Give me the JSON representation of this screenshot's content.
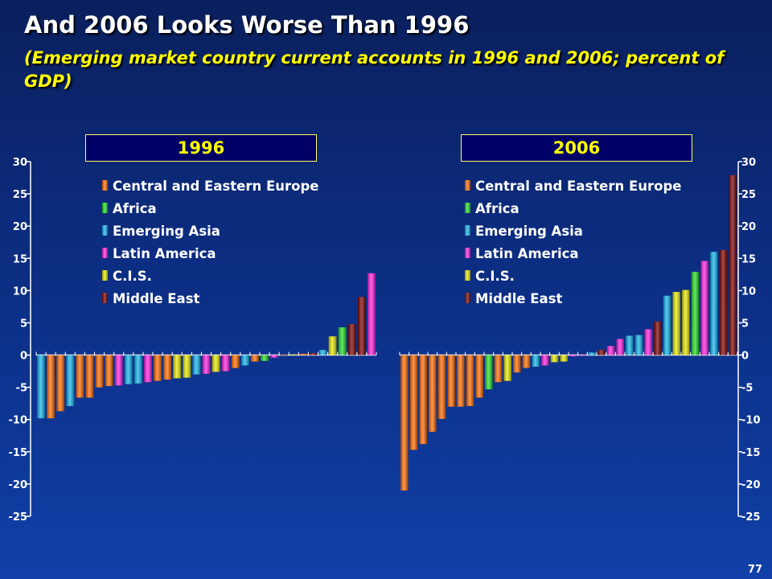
{
  "title": "And 2006 Looks Worse Than 1996",
  "subtitle": "(Emerging market country current accounts in 1996 and 2006; percent of GDP)",
  "page_number": "77",
  "colors": {
    "Central and Eastern Europe": "#ff6a00",
    "Africa": "#22dd22",
    "Emerging Asia": "#10b4ee",
    "Latin America": "#ff1fe0",
    "C.I.S.": "#e8e800",
    "Middle East": "#7a0000"
  },
  "chart_data": [
    {
      "type": "bar",
      "title": "1996",
      "ylim": [
        -25,
        30
      ],
      "yticks": [
        "30",
        "25",
        "20",
        "15",
        "10",
        "5",
        "0",
        "-5",
        "-10",
        "-15",
        "-20",
        "-25"
      ],
      "legend": [
        "Central and Eastern Europe",
        "Africa",
        "Emerging Asia",
        "Latin America",
        "C.I.S.",
        "Middle East"
      ],
      "axis_side": "left",
      "bars": [
        {
          "region": "Emerging Asia",
          "value": -9.8
        },
        {
          "region": "Central and Eastern Europe",
          "value": -9.8
        },
        {
          "region": "Central and Eastern Europe",
          "value": -8.7
        },
        {
          "region": "Emerging Asia",
          "value": -7.9
        },
        {
          "region": "Central and Eastern Europe",
          "value": -6.6
        },
        {
          "region": "Central and Eastern Europe",
          "value": -6.6
        },
        {
          "region": "Central and Eastern Europe",
          "value": -5.0
        },
        {
          "region": "Central and Eastern Europe",
          "value": -4.8
        },
        {
          "region": "Latin America",
          "value": -4.7
        },
        {
          "region": "Emerging Asia",
          "value": -4.5
        },
        {
          "region": "Emerging Asia",
          "value": -4.4
        },
        {
          "region": "Latin America",
          "value": -4.2
        },
        {
          "region": "Central and Eastern Europe",
          "value": -4.0
        },
        {
          "region": "Central and Eastern Europe",
          "value": -3.8
        },
        {
          "region": "C.I.S.",
          "value": -3.6
        },
        {
          "region": "C.I.S.",
          "value": -3.5
        },
        {
          "region": "Emerging Asia",
          "value": -3.0
        },
        {
          "region": "Latin America",
          "value": -2.9
        },
        {
          "region": "C.I.S.",
          "value": -2.6
        },
        {
          "region": "Latin America",
          "value": -2.5
        },
        {
          "region": "Central and Eastern Europe",
          "value": -2.0
        },
        {
          "region": "Emerging Asia",
          "value": -1.6
        },
        {
          "region": "Central and Eastern Europe",
          "value": -1.0
        },
        {
          "region": "Africa",
          "value": -0.9
        },
        {
          "region": "Latin America",
          "value": -0.4
        },
        {
          "region": "Middle East",
          "value": 0.1
        },
        {
          "region": "C.I.S.",
          "value": 0.1
        },
        {
          "region": "Central and Eastern Europe",
          "value": 0.2
        },
        {
          "region": "Middle East",
          "value": 0.3
        },
        {
          "region": "Emerging Asia",
          "value": 0.8
        },
        {
          "region": "C.I.S.",
          "value": 2.9
        },
        {
          "region": "Africa",
          "value": 4.3
        },
        {
          "region": "Middle East",
          "value": 4.8
        },
        {
          "region": "Middle East",
          "value": 9.0
        },
        {
          "region": "Latin America",
          "value": 12.7
        }
      ]
    },
    {
      "type": "bar",
      "title": "2006",
      "ylim": [
        -25,
        30
      ],
      "yticks": [
        "30",
        "25",
        "20",
        "15",
        "10",
        "5",
        "0",
        "-5",
        "-10",
        "-15",
        "-20",
        "-25"
      ],
      "legend": [
        "Central and Eastern Europe",
        "Africa",
        "Emerging Asia",
        "Latin America",
        "C.I.S.",
        "Middle East"
      ],
      "axis_side": "right",
      "bars": [
        {
          "region": "Central and Eastern Europe",
          "value": -21.0
        },
        {
          "region": "Central and Eastern Europe",
          "value": -14.7
        },
        {
          "region": "Central and Eastern Europe",
          "value": -13.8
        },
        {
          "region": "Central and Eastern Europe",
          "value": -11.9
        },
        {
          "region": "Central and Eastern Europe",
          "value": -9.9
        },
        {
          "region": "Central and Eastern Europe",
          "value": -8.0
        },
        {
          "region": "Central and Eastern Europe",
          "value": -8.0
        },
        {
          "region": "Central and Eastern Europe",
          "value": -7.9
        },
        {
          "region": "Central and Eastern Europe",
          "value": -6.6
        },
        {
          "region": "Africa",
          "value": -5.3
        },
        {
          "region": "Central and Eastern Europe",
          "value": -4.2
        },
        {
          "region": "C.I.S.",
          "value": -4.0
        },
        {
          "region": "Central and Eastern Europe",
          "value": -2.7
        },
        {
          "region": "Central and Eastern Europe",
          "value": -2.0
        },
        {
          "region": "Emerging Asia",
          "value": -1.8
        },
        {
          "region": "Latin America",
          "value": -1.6
        },
        {
          "region": "C.I.S.",
          "value": -1.1
        },
        {
          "region": "C.I.S.",
          "value": -1.0
        },
        {
          "region": "Latin America",
          "value": -0.2
        },
        {
          "region": "Latin America",
          "value": 0.1
        },
        {
          "region": "Emerging Asia",
          "value": 0.4
        },
        {
          "region": "Middle East",
          "value": 0.8
        },
        {
          "region": "Latin America",
          "value": 1.4
        },
        {
          "region": "Latin America",
          "value": 2.5
        },
        {
          "region": "Emerging Asia",
          "value": 3.0
        },
        {
          "region": "Emerging Asia",
          "value": 3.1
        },
        {
          "region": "Latin America",
          "value": 4.0
        },
        {
          "region": "Middle East",
          "value": 5.2
        },
        {
          "region": "Emerging Asia",
          "value": 9.2
        },
        {
          "region": "C.I.S.",
          "value": 9.8
        },
        {
          "region": "C.I.S.",
          "value": 10.1
        },
        {
          "region": "Africa",
          "value": 12.9
        },
        {
          "region": "Latin America",
          "value": 14.6
        },
        {
          "region": "Emerging Asia",
          "value": 16.0
        },
        {
          "region": "Middle East",
          "value": 16.3
        },
        {
          "region": "Middle East",
          "value": 27.9
        }
      ]
    }
  ]
}
